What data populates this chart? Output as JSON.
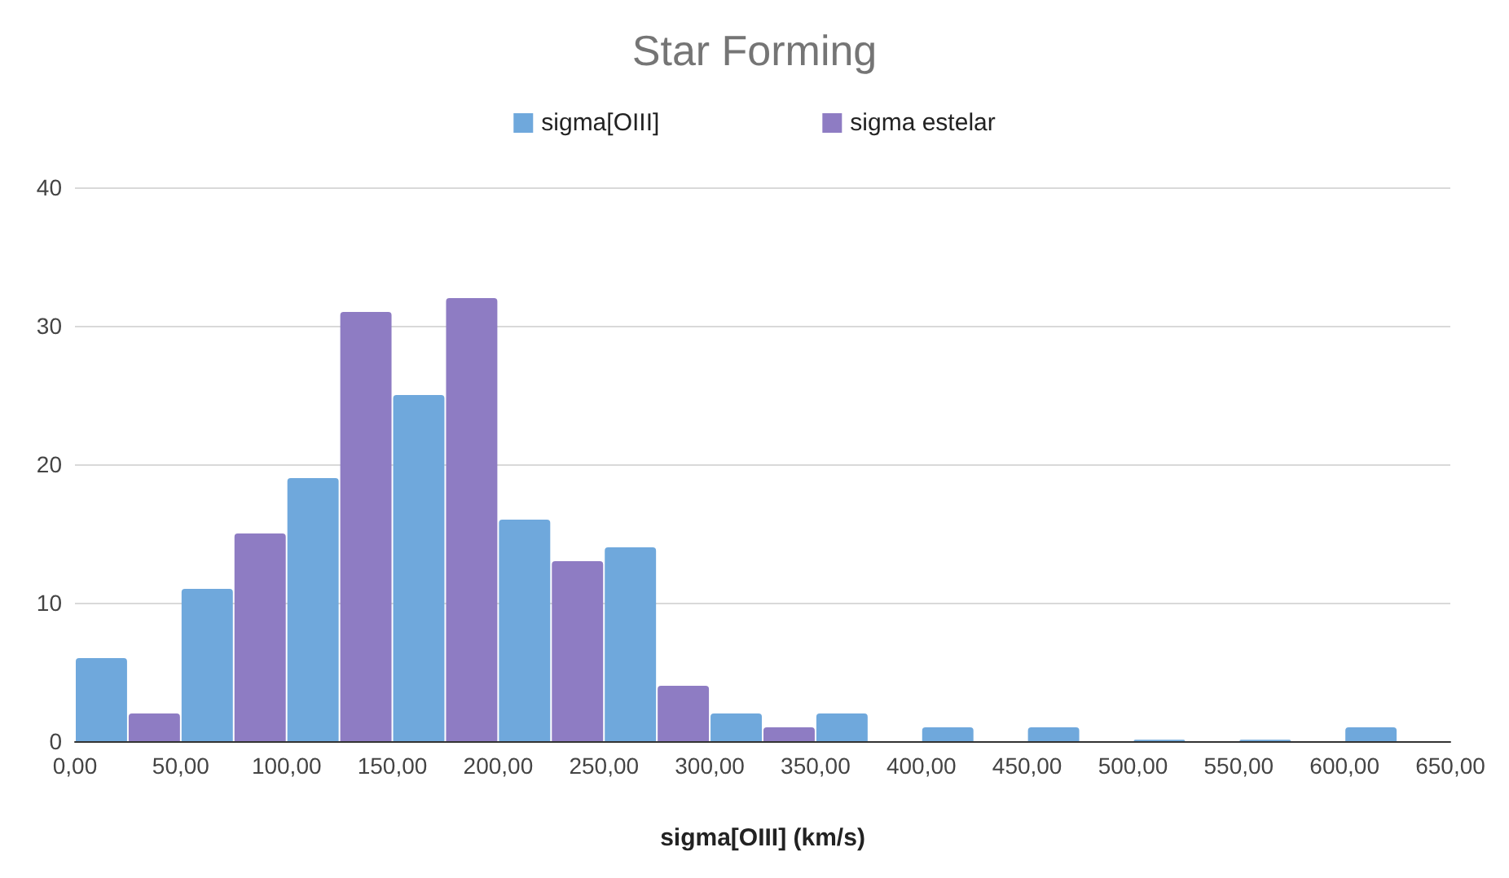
{
  "chart_data": {
    "type": "histogram",
    "title": "Star Forming",
    "xlabel": "sigma[OIII] (km/s)",
    "bins": [
      0,
      50,
      100,
      150,
      200,
      250,
      300,
      350,
      400,
      450,
      500,
      550,
      600,
      650
    ],
    "series": [
      {
        "name": "sigma[OIII]",
        "color": "#6fa8dc",
        "values": [
          6,
          11,
          19,
          25,
          16,
          14,
          2,
          2,
          1,
          1,
          0.1,
          0.1,
          1
        ]
      },
      {
        "name": "sigma estelar",
        "color": "#8e7cc3",
        "values": [
          2,
          15,
          31,
          32,
          13,
          4,
          1,
          0,
          0,
          0,
          0,
          0,
          0
        ]
      }
    ],
    "xlim": [
      0,
      650
    ],
    "xticks": [
      {
        "value": 0,
        "label": "0,00"
      },
      {
        "value": 50,
        "label": "50,00"
      },
      {
        "value": 100,
        "label": "100,00"
      },
      {
        "value": 150,
        "label": "150,00"
      },
      {
        "value": 200,
        "label": "200,00"
      },
      {
        "value": 250,
        "label": "250,00"
      },
      {
        "value": 300,
        "label": "300,00"
      },
      {
        "value": 350,
        "label": "350,00"
      },
      {
        "value": 400,
        "label": "400,00"
      },
      {
        "value": 450,
        "label": "450,00"
      },
      {
        "value": 500,
        "label": "500,00"
      },
      {
        "value": 550,
        "label": "550,00"
      },
      {
        "value": 600,
        "label": "600,00"
      },
      {
        "value": 650,
        "label": "650,00"
      }
    ],
    "ylim": [
      0,
      40
    ],
    "yticks": [
      0,
      10,
      20,
      30,
      40
    ],
    "grid": "y",
    "legend": "top"
  }
}
